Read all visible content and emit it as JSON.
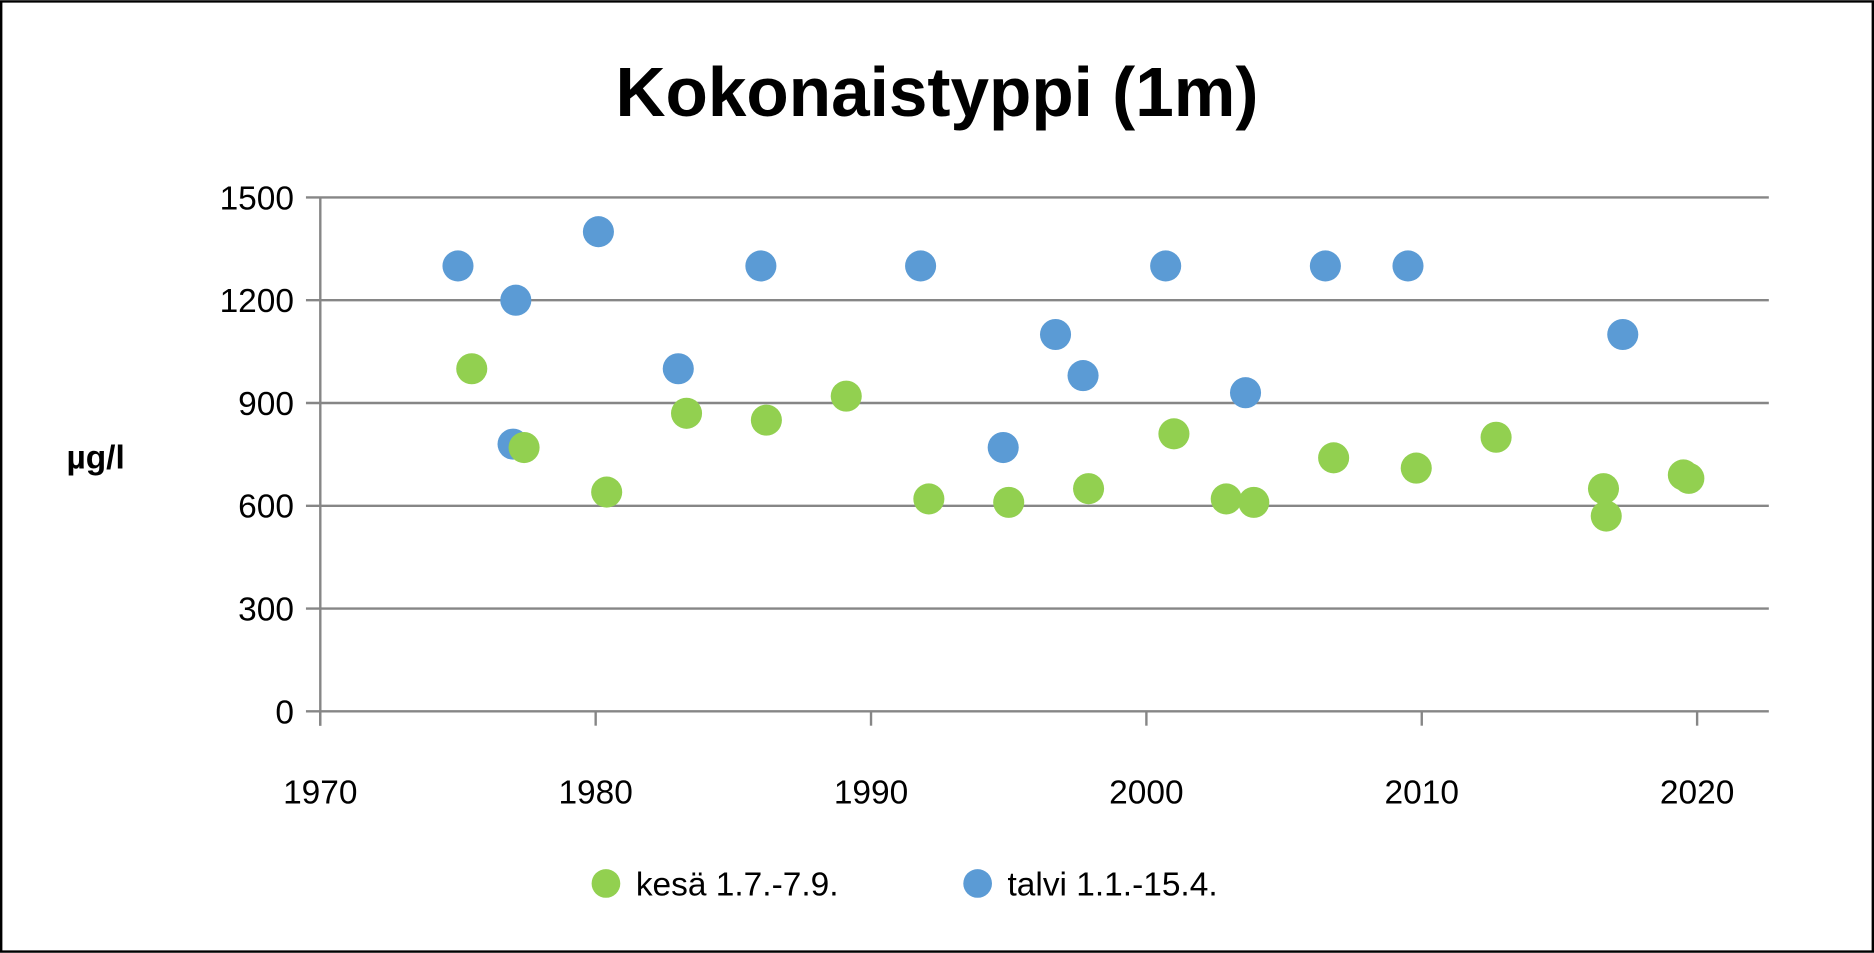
{
  "chart_data": {
    "type": "scatter",
    "title": "Kokonaistyppi (1m)",
    "xlabel": "",
    "ylabel": "µg/l",
    "xlim": [
      1970,
      2022.6
    ],
    "ylim": [
      0,
      1500
    ],
    "xticks": [
      1970,
      1980,
      1990,
      2000,
      2010,
      2020
    ],
    "yticks": [
      0,
      300,
      600,
      900,
      1200,
      1500
    ],
    "grid": "horizontal",
    "legend_position": "bottom",
    "series": [
      {
        "name": "kesä 1.7.-7.9.",
        "color": "#92d050",
        "points": [
          [
            1975.5,
            1000
          ],
          [
            1977.4,
            770
          ],
          [
            1980.4,
            640
          ],
          [
            1983.3,
            870
          ],
          [
            1986.2,
            850
          ],
          [
            1989.1,
            920
          ],
          [
            1992.1,
            620
          ],
          [
            1995.0,
            610
          ],
          [
            1997.9,
            650
          ],
          [
            2001.0,
            810
          ],
          [
            2002.9,
            620
          ],
          [
            2003.9,
            610
          ],
          [
            2006.8,
            740
          ],
          [
            2009.8,
            710
          ],
          [
            2012.7,
            800
          ],
          [
            2016.6,
            650
          ],
          [
            2016.7,
            570
          ],
          [
            2019.5,
            690
          ],
          [
            2019.7,
            680
          ]
        ]
      },
      {
        "name": "talvi 1.1.-15.4.",
        "color": "#5b9bd5",
        "points": [
          [
            1975.0,
            1300
          ],
          [
            1977.1,
            1200
          ],
          [
            1977.0,
            780
          ],
          [
            1980.1,
            1400
          ],
          [
            1983.0,
            1000
          ],
          [
            1986.0,
            1300
          ],
          [
            1991.8,
            1300
          ],
          [
            1994.8,
            770
          ],
          [
            1996.7,
            1100
          ],
          [
            1997.7,
            980
          ],
          [
            2000.7,
            1300
          ],
          [
            2003.6,
            930
          ],
          [
            2006.5,
            1300
          ],
          [
            2009.5,
            1300
          ],
          [
            2017.3,
            1100
          ]
        ]
      }
    ]
  }
}
